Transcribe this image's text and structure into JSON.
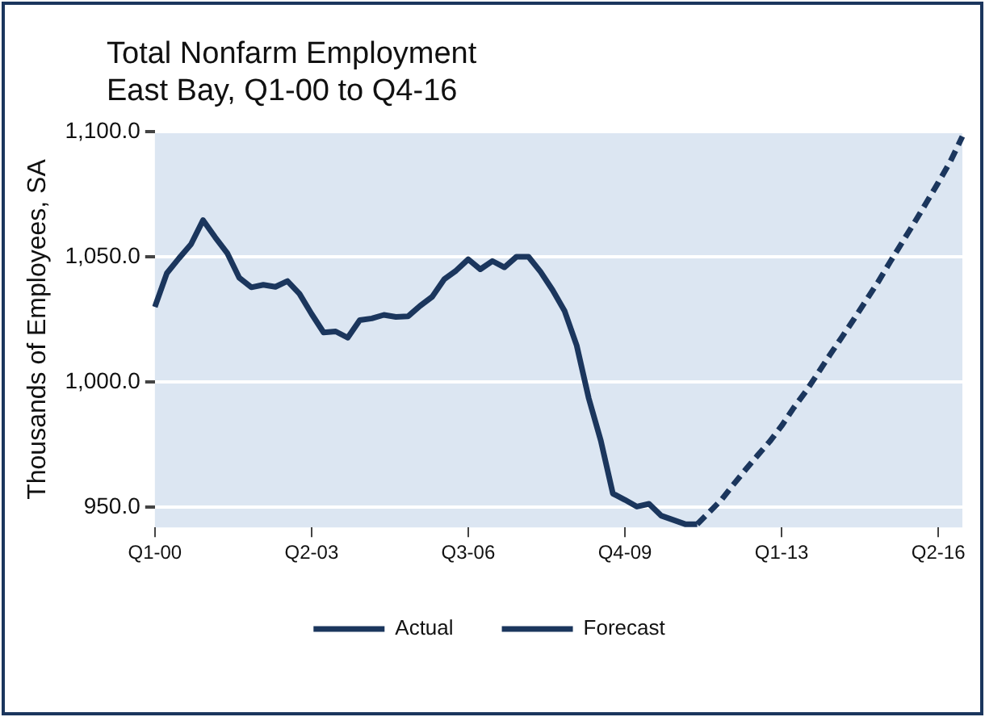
{
  "chart_data": {
    "type": "line",
    "title": "Total Nonfarm Employment",
    "subtitle": "East Bay, Q1-00 to Q4-16",
    "ylabel": "Thousands of Employees, SA",
    "categories": [
      "Q1-00",
      null,
      null,
      null,
      null,
      null,
      null,
      null,
      null,
      null,
      null,
      null,
      null,
      "Q2-03",
      null,
      null,
      null,
      null,
      null,
      null,
      null,
      null,
      null,
      null,
      null,
      null,
      "Q3-06",
      null,
      null,
      null,
      null,
      null,
      null,
      null,
      null,
      null,
      null,
      null,
      null,
      "Q4-09",
      null,
      null,
      null,
      null,
      null,
      null,
      null,
      null,
      null,
      null,
      null,
      null,
      "Q1-13",
      null,
      null,
      null,
      null,
      null,
      null,
      null,
      null,
      null,
      null,
      null,
      null,
      "Q2-16",
      null,
      null
    ],
    "series": [
      {
        "name": "Actual",
        "color": "#1b365d",
        "line_style": "solid",
        "values": [
          1030,
          1043.5,
          1049.4,
          1055,
          1064.6,
          1057.8,
          1051.5,
          1041.6,
          1037.8,
          1038.8,
          1038,
          1040.3,
          1035.2,
          1027.2,
          1019.8,
          1020.2,
          1017.7,
          1024.7,
          1025.4,
          1026.8,
          1026,
          1026.2,
          1030.4,
          1034,
          1041,
          1044.5,
          1049,
          1045,
          1048.3,
          1045.8,
          1050,
          1050,
          1044,
          1036.7,
          1028.3,
          1014.6,
          993.5,
          976.6,
          955.5,
          953,
          950.3,
          951.4,
          946.7,
          945,
          943.3,
          943.3,
          null,
          null,
          null,
          null,
          null,
          null,
          null,
          null,
          null,
          null,
          null,
          null,
          null,
          null,
          null,
          null,
          null,
          null,
          null,
          null,
          null,
          null
        ]
      },
      {
        "name": "Forecast",
        "color": "#1b365d",
        "line_style": "dashed",
        "values": [
          null,
          null,
          null,
          null,
          null,
          null,
          null,
          null,
          null,
          null,
          null,
          null,
          null,
          null,
          null,
          null,
          null,
          null,
          null,
          null,
          null,
          null,
          null,
          null,
          null,
          null,
          null,
          null,
          null,
          null,
          null,
          null,
          null,
          null,
          null,
          null,
          null,
          null,
          null,
          null,
          null,
          null,
          null,
          null,
          null,
          943.3,
          948.1,
          953,
          959.1,
          965,
          970.7,
          976.2,
          982.5,
          989.7,
          996.2,
          1003.4,
          1010.8,
          1017.9,
          1025.1,
          1032.5,
          1039.9,
          1047.9,
          1055.7,
          1063.5,
          1071.5,
          1079.6,
          1088,
          1098
        ]
      }
    ],
    "ylim": [
      942,
      1100
    ],
    "yticks": [
      {
        "value": 950,
        "label": "950.0"
      },
      {
        "value": 1000,
        "label": "1,000.0"
      },
      {
        "value": 1050,
        "label": "1,050.0"
      },
      {
        "value": 1100,
        "label": "1,100.0"
      }
    ],
    "grid": "y",
    "legend": "bottom",
    "marker": "none"
  }
}
